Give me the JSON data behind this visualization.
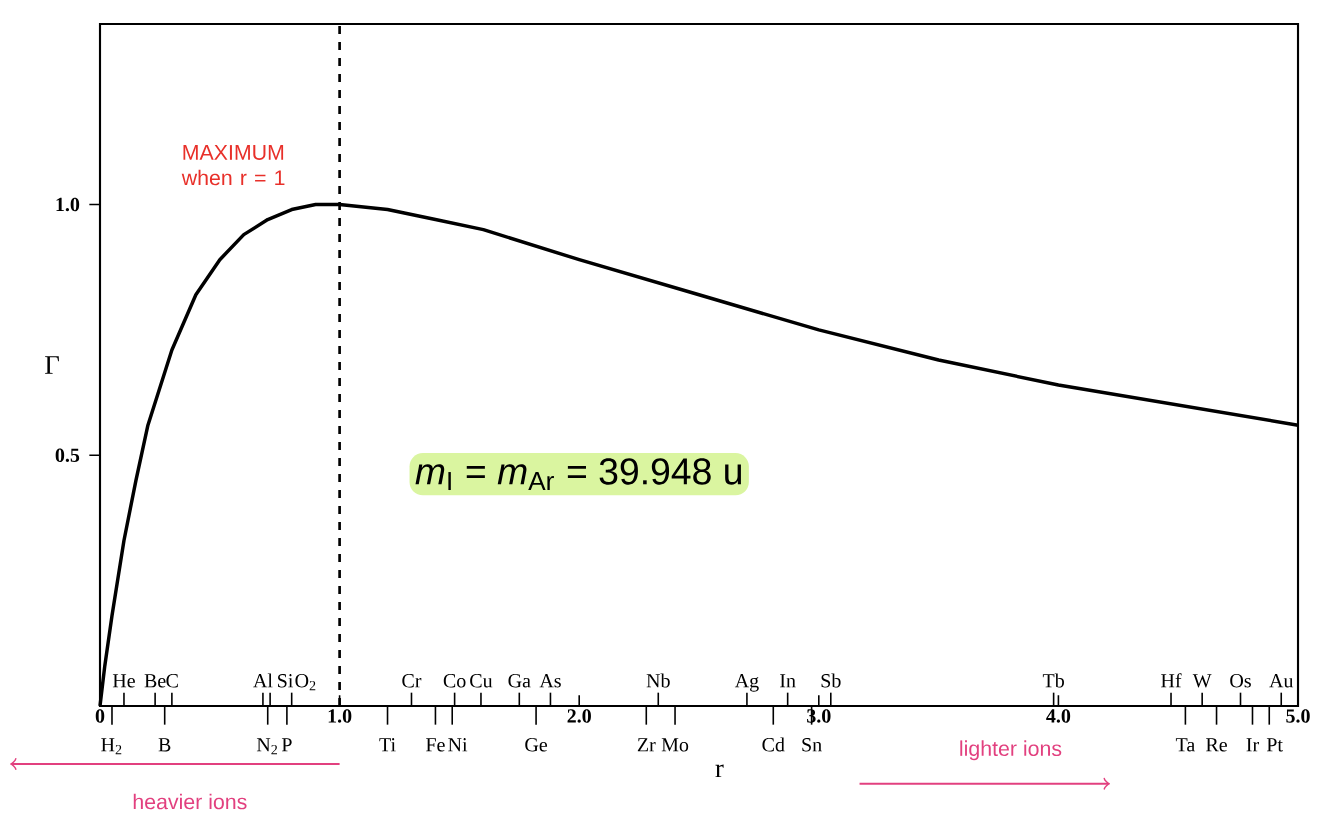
{
  "chart_data": {
    "type": "line",
    "xlabel": "r",
    "ylabel": "Γ",
    "xlim": [
      0,
      5
    ],
    "ylim": [
      0,
      1.36
    ],
    "yticks": [
      {
        "value": 0.5,
        "label": "0.5"
      },
      {
        "value": 1.0,
        "label": "1.0"
      }
    ],
    "xticks": [
      0,
      {
        "value": 1,
        "label": "1.0"
      },
      {
        "value": 2,
        "label": "2.0"
      },
      {
        "value": 3,
        "label": "3.0"
      },
      {
        "value": 4,
        "label": "4.0"
      },
      {
        "value": 5,
        "label": "5.0"
      }
    ],
    "series": [
      {
        "color": "#000000",
        "x": [
          0,
          0.02,
          0.05,
          0.1,
          0.15,
          0.2,
          0.3,
          0.4,
          0.5,
          0.6,
          0.7,
          0.8,
          0.9,
          1.0,
          1.2,
          1.4,
          1.6,
          1.8,
          2.0,
          2.5,
          3.0,
          3.5,
          4.0,
          4.5,
          5.0
        ],
        "values": [
          0,
          0.08,
          0.18,
          0.33,
          0.45,
          0.56,
          0.71,
          0.82,
          0.89,
          0.94,
          0.97,
          0.99,
          1.0,
          1.0,
          0.99,
          0.97,
          0.95,
          0.92,
          0.89,
          0.82,
          0.75,
          0.69,
          0.64,
          0.6,
          0.56
        ]
      }
    ],
    "ref_lines": [
      {
        "axis": "x",
        "value": 1,
        "line_style": "dashed"
      },
      {
        "axis": "x",
        "value": 0.1,
        "label": "He"
      },
      {
        "axis": "x",
        "value": 0.23,
        "label": "Be"
      },
      {
        "axis": "x",
        "value": 0.3,
        "label": "C"
      },
      {
        "axis": "x",
        "value": 0.68,
        "label": "Al"
      },
      {
        "axis": "x",
        "value": 0.71,
        "label": "Si"
      },
      {
        "axis": "x",
        "value": 0.8,
        "label": "O$_{2}$"
      },
      {
        "axis": "x",
        "value": 1.3,
        "label": "Cr"
      },
      {
        "axis": "x",
        "value": 1.48,
        "label": "Co"
      },
      {
        "axis": "x",
        "value": 1.59,
        "label": "Cu"
      },
      {
        "axis": "x",
        "value": 1.75,
        "label": "Ga"
      },
      {
        "axis": "x",
        "value": 1.88,
        "label": "As"
      },
      {
        "axis": "x",
        "value": 2.33,
        "label": "Nb"
      },
      {
        "axis": "x",
        "value": 2.7,
        "label": "Ag"
      },
      {
        "axis": "x",
        "value": 2.87,
        "label": "In"
      },
      {
        "axis": "x",
        "value": 3.05,
        "label": "Sb"
      },
      {
        "axis": "x",
        "value": 3.98,
        "label": "Tb"
      },
      {
        "axis": "x",
        "value": 4.47,
        "label": "Hf"
      },
      {
        "axis": "x",
        "value": 4.6,
        "label": "W"
      },
      {
        "axis": "x",
        "value": 4.76,
        "label": "Os"
      },
      {
        "axis": "x",
        "value": 4.93,
        "label": "Au"
      },
      {
        "axis": "x",
        "value": 0.05,
        "label": "H$_{2}$"
      },
      {
        "axis": "x",
        "value": 0.27,
        "label": "B"
      },
      {
        "axis": "x",
        "value": 0.7,
        "label": "N$_{2}$"
      },
      {
        "axis": "x",
        "value": 0.78,
        "label": "P"
      },
      {
        "axis": "x",
        "value": 1.2,
        "label": "Ti"
      },
      {
        "axis": "x",
        "value": 1.4,
        "label": "Fe"
      },
      {
        "axis": "x",
        "value": 1.47,
        "label": "Ni"
      },
      {
        "axis": "x",
        "value": 1.82,
        "label": "Ge"
      },
      {
        "axis": "x",
        "value": 2.28,
        "label": "Zr"
      },
      {
        "axis": "x",
        "value": 2.4,
        "label": "Mo"
      },
      {
        "axis": "x",
        "value": 2.81,
        "label": "Cd"
      },
      {
        "axis": "x",
        "value": 2.97,
        "label": "Sn"
      },
      {
        "axis": "x",
        "value": 4.53,
        "label": "Ta"
      },
      {
        "axis": "x",
        "value": 4.66,
        "label": "Re"
      },
      {
        "axis": "x",
        "value": 4.81,
        "label": "Ir"
      },
      {
        "axis": "x",
        "value": 4.88,
        "label": "Pt"
      }
    ],
    "annotations": [
      {
        "text": "MAXIMUM when r = 1",
        "x": 1,
        "y": 1
      },
      "*m*$_{I}$ = *m*$_{Ar}$ = 39.948 u",
      "heavier ions",
      "lighter ions"
    ],
    "marker": "none",
    "line_style": "solid"
  }
}
